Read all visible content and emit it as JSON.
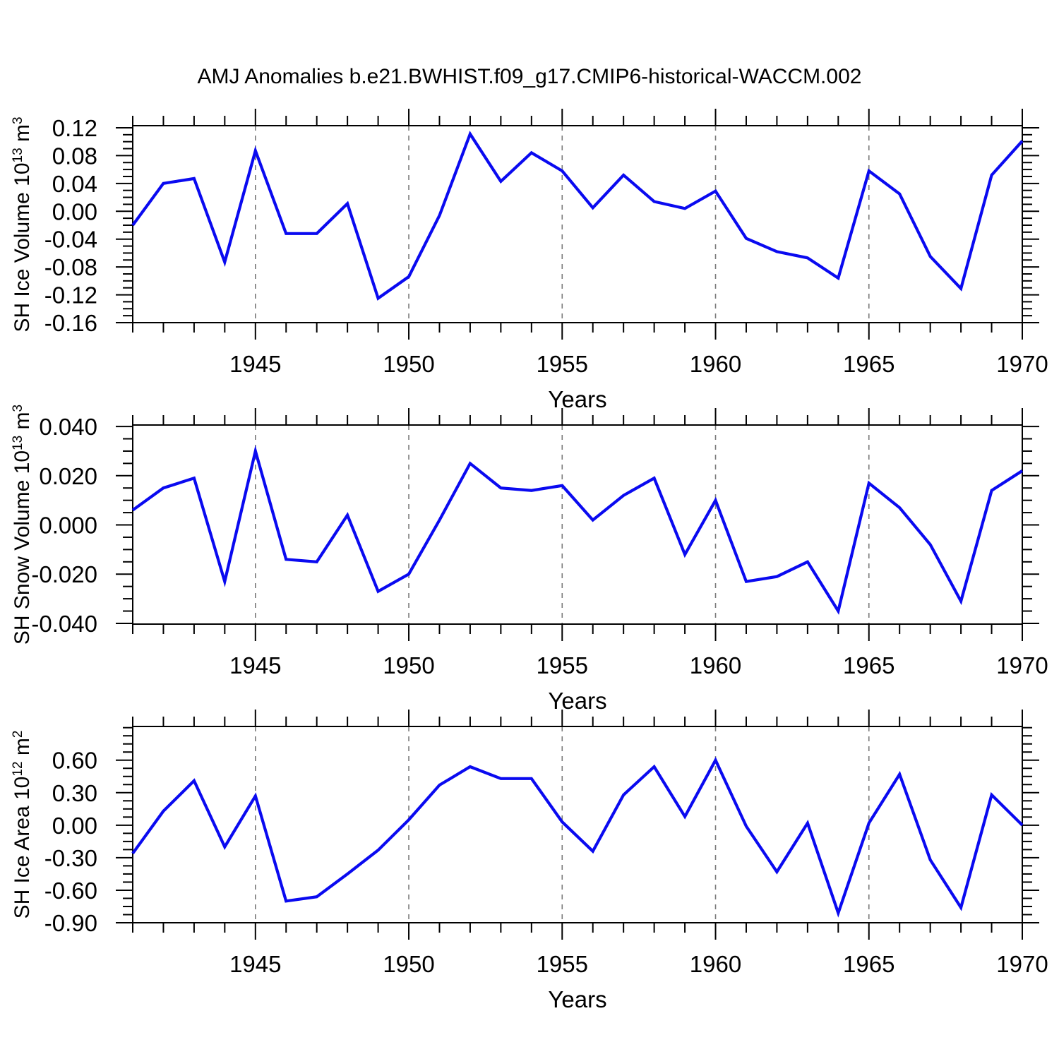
{
  "title": "AMJ Anomalies b.e21.BWHIST.f09_g17.CMIP6-historical-WACCM.002",
  "colors": {
    "line": "#0a0af0",
    "axis": "#000000",
    "grid": "#7a7a7a",
    "background": "#ffffff"
  },
  "chart_data": [
    {
      "type": "line",
      "name": "sh-ice-volume",
      "ylabel_text": "SH Ice Volume 10^13 m^3",
      "ylabel_segments": [
        {
          "t": "SH Ice Volume 10"
        },
        {
          "t": "13",
          "sup": true
        },
        {
          "t": " m"
        },
        {
          "t": "3",
          "sup": true
        }
      ],
      "xlabel": "Years",
      "x": [
        1941,
        1942,
        1943,
        1944,
        1945,
        1946,
        1947,
        1948,
        1949,
        1950,
        1951,
        1952,
        1953,
        1954,
        1955,
        1956,
        1957,
        1958,
        1959,
        1960,
        1961,
        1962,
        1963,
        1964,
        1965,
        1966,
        1967,
        1968,
        1969,
        1970
      ],
      "y": [
        -0.02,
        0.04,
        0.047,
        -0.073,
        0.087,
        -0.032,
        -0.032,
        0.011,
        -0.125,
        -0.094,
        -0.006,
        0.111,
        0.043,
        0.084,
        0.058,
        0.005,
        0.052,
        0.014,
        0.004,
        0.029,
        -0.039,
        -0.058,
        -0.067,
        -0.096,
        0.058,
        0.025,
        -0.065,
        -0.111,
        0.052,
        0.101
      ],
      "xlim": [
        1941,
        1970
      ],
      "ylim": [
        -0.16,
        0.123
      ],
      "xticks_major": [
        1945,
        1950,
        1955,
        1960,
        1965,
        1970
      ],
      "xtick_labels": [
        "1945",
        "1950",
        "1955",
        "1960",
        "1965",
        "1970"
      ],
      "xminor_step": 1,
      "ytick_major": [
        -0.16,
        -0.12,
        -0.08,
        -0.04,
        0,
        0.04,
        0.08,
        0.12
      ],
      "ytick_labels": [
        "-0.16",
        "-0.12",
        "-0.08",
        "-0.04",
        "0.00",
        "0.04",
        "0.08",
        "0.12"
      ],
      "yminor_step": 0.01,
      "gridlines_x": [
        1945,
        1950,
        1955,
        1960,
        1965
      ],
      "grid_style": "dashed"
    },
    {
      "type": "line",
      "name": "sh-snow-volume",
      "ylabel_text": "SH Snow Volume 10^13 m^3",
      "ylabel_segments": [
        {
          "t": "SH Snow Volume 10"
        },
        {
          "t": "13",
          "sup": true
        },
        {
          "t": " m"
        },
        {
          "t": "3",
          "sup": true
        }
      ],
      "xlabel": "Years",
      "x": [
        1941,
        1942,
        1943,
        1944,
        1945,
        1946,
        1947,
        1948,
        1949,
        1950,
        1951,
        1952,
        1953,
        1954,
        1955,
        1956,
        1957,
        1958,
        1959,
        1960,
        1961,
        1962,
        1963,
        1964,
        1965,
        1966,
        1967,
        1968,
        1969,
        1970
      ],
      "y": [
        0.006,
        0.015,
        0.019,
        -0.023,
        0.03,
        -0.014,
        -0.015,
        0.004,
        -0.027,
        -0.02,
        0.002,
        0.025,
        0.015,
        0.014,
        0.016,
        0.002,
        0.012,
        0.019,
        -0.012,
        0.01,
        -0.023,
        -0.021,
        -0.015,
        -0.035,
        0.017,
        0.007,
        -0.008,
        -0.031,
        0.014,
        0.022
      ],
      "xlim": [
        1941,
        1970
      ],
      "ylim": [
        -0.0403,
        0.0406
      ],
      "xticks_major": [
        1945,
        1950,
        1955,
        1960,
        1965,
        1970
      ],
      "xtick_labels": [
        "1945",
        "1950",
        "1955",
        "1960",
        "1965",
        "1970"
      ],
      "xminor_step": 1,
      "ytick_major": [
        -0.04,
        -0.02,
        0,
        0.02,
        0.04
      ],
      "ytick_labels": [
        "-0.040",
        "-0.020",
        "0.000",
        "0.020",
        "0.040"
      ],
      "yminor_step": 0.005,
      "gridlines_x": [
        1945,
        1950,
        1955,
        1960,
        1965
      ],
      "grid_style": "dashed"
    },
    {
      "type": "line",
      "name": "sh-ice-area",
      "ylabel_text": "SH Ice Area 10^12 m^2",
      "ylabel_segments": [
        {
          "t": "SH Ice Area 10"
        },
        {
          "t": "12",
          "sup": true
        },
        {
          "t": " m"
        },
        {
          "t": "2",
          "sup": true
        }
      ],
      "xlabel": "Years",
      "x": [
        1941,
        1942,
        1943,
        1944,
        1945,
        1946,
        1947,
        1948,
        1949,
        1950,
        1951,
        1952,
        1953,
        1954,
        1955,
        1956,
        1957,
        1958,
        1959,
        1960,
        1961,
        1962,
        1963,
        1964,
        1965,
        1966,
        1967,
        1968,
        1969,
        1970
      ],
      "y": [
        -0.26,
        0.13,
        0.41,
        -0.2,
        0.27,
        -0.7,
        -0.66,
        -0.45,
        -0.23,
        0.05,
        0.37,
        0.54,
        0.43,
        0.43,
        0.03,
        -0.24,
        0.28,
        0.54,
        0.08,
        0.6,
        -0.01,
        -0.43,
        0.02,
        -0.81,
        0.02,
        0.47,
        -0.32,
        -0.76,
        0.28,
        0.0
      ],
      "xlim": [
        1941,
        1970
      ],
      "ylim": [
        -0.9,
        0.911
      ],
      "xticks_major": [
        1945,
        1950,
        1955,
        1960,
        1965,
        1970
      ],
      "xtick_labels": [
        "1945",
        "1950",
        "1955",
        "1960",
        "1965",
        "1970"
      ],
      "xminor_step": 1,
      "ytick_major": [
        -0.9,
        -0.6,
        -0.3,
        0,
        0.3,
        0.6
      ],
      "ytick_labels": [
        "-0.90",
        "-0.60",
        "-0.30",
        "0.00",
        "0.30",
        "0.60"
      ],
      "yminor_step": 0.075,
      "gridlines_x": [
        1945,
        1950,
        1955,
        1960,
        1965
      ],
      "grid_style": "dashed"
    }
  ]
}
